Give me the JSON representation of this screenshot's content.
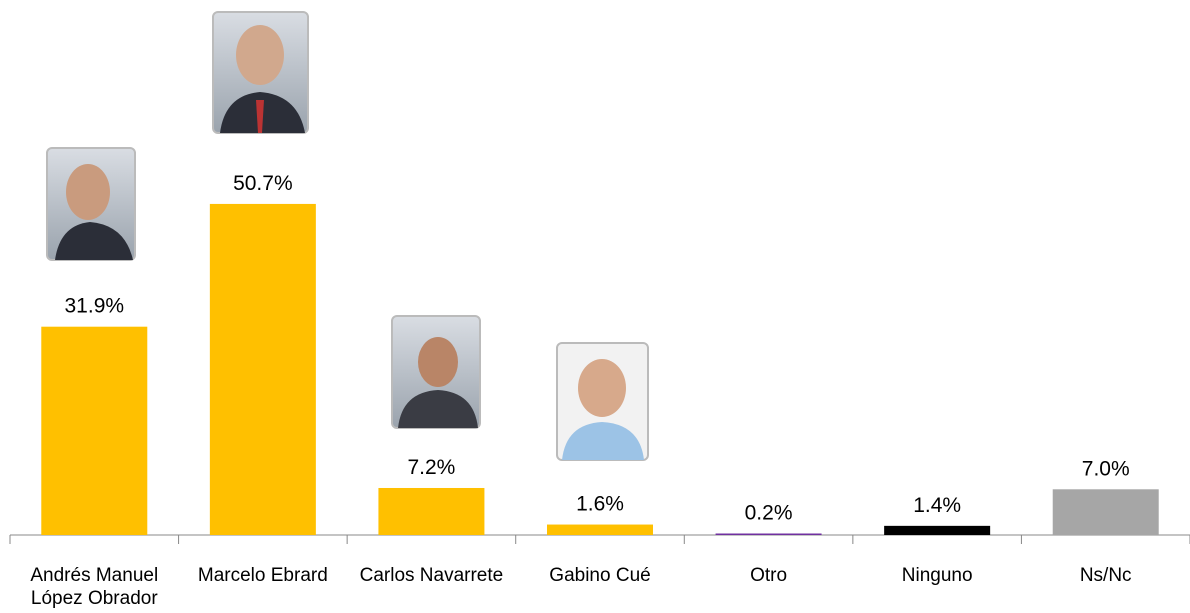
{
  "chart_data": {
    "type": "bar",
    "categories": [
      "Andrés Manuel López Obrador",
      "Marcelo Ebrard",
      "Carlos Navarrete",
      "Gabino Cué",
      "Otro",
      "Ninguno",
      "Ns/Nc"
    ],
    "values": [
      31.9,
      50.7,
      7.2,
      1.6,
      0.2,
      1.4,
      7.0
    ],
    "value_labels": [
      "31.9%",
      "50.7%",
      "7.2%",
      "1.6%",
      "0.2%",
      "1.4%",
      "7.0%"
    ],
    "colors": [
      "#ffc000",
      "#ffc000",
      "#ffc000",
      "#ffc000",
      "#7030a0",
      "#000000",
      "#a6a6a6"
    ]
  }
}
